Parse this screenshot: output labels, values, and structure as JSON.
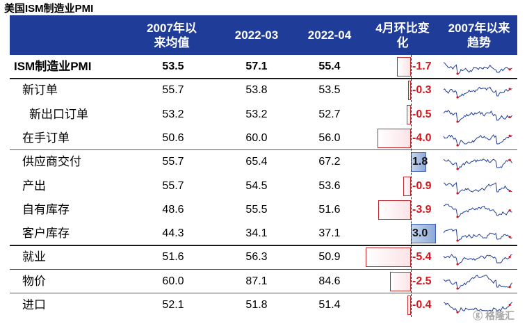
{
  "title": "美国ISM制造业PMI",
  "headers": {
    "c1": "2007年以来均值",
    "c2": "2022-03",
    "c3": "2022-04",
    "c4": "4月环比变化",
    "c5": "2007年以来趋势"
  },
  "rows": [
    {
      "label": "ISM制造业PMI",
      "avg": "53.5",
      "mar": "57.1",
      "apr": "55.4",
      "change": -1.7,
      "change_text": "-1.7"
    },
    {
      "label": "新订单",
      "avg": "55.7",
      "mar": "53.8",
      "apr": "53.5",
      "change": -0.3,
      "change_text": "-0.3"
    },
    {
      "label": "新出口订单",
      "avg": "53.2",
      "mar": "53.2",
      "apr": "52.7",
      "change": -0.5,
      "change_text": "-0.5"
    },
    {
      "label": "在手订单",
      "avg": "50.6",
      "mar": "60.0",
      "apr": "56.0",
      "change": -4.0,
      "change_text": "-4.0"
    },
    {
      "label": "供应商交付",
      "avg": "55.7",
      "mar": "65.4",
      "apr": "67.2",
      "change": 1.8,
      "change_text": "1.8"
    },
    {
      "label": "产出",
      "avg": "55.7",
      "mar": "54.5",
      "apr": "53.6",
      "change": -0.9,
      "change_text": "-0.9"
    },
    {
      "label": "自有库存",
      "avg": "48.6",
      "mar": "55.5",
      "apr": "51.6",
      "change": -3.9,
      "change_text": "-3.9"
    },
    {
      "label": "客户库存",
      "avg": "44.3",
      "mar": "34.1",
      "apr": "37.1",
      "change": 3.0,
      "change_text": "3.0"
    },
    {
      "label": "就业",
      "avg": "51.6",
      "mar": "56.3",
      "apr": "50.9",
      "change": -5.4,
      "change_text": "-5.4"
    },
    {
      "label": "物价",
      "avg": "60.0",
      "mar": "87.1",
      "apr": "84.6",
      "change": -2.5,
      "change_text": "-2.5"
    },
    {
      "label": "进口",
      "avg": "52.1",
      "mar": "51.8",
      "apr": "51.4",
      "change": -0.4,
      "change_text": "-0.4"
    }
  ],
  "colors": {
    "header_bg": "#1f3c99",
    "negative": "#d8141c",
    "positive_bar": "#8fa9d8",
    "sparkline": "#1f3c99",
    "marker": "#d8141c"
  },
  "watermark": "格隆汇"
}
